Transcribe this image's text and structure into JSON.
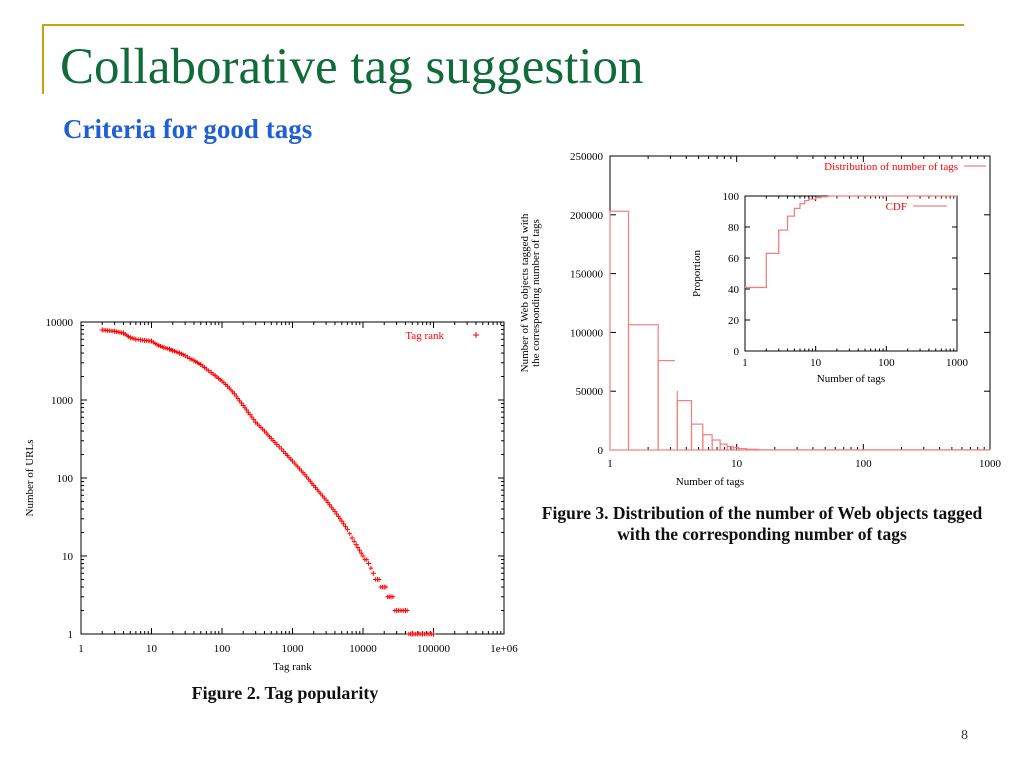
{
  "slide": {
    "title": "Collaborative tag suggestion",
    "subtitle": "Criteria for good tags",
    "page_number": "8",
    "colors": {
      "title": "#0f6b3a",
      "subtitle": "#1f5fd4",
      "frame": "#c8a217",
      "series": "#ff0000",
      "series_light": "#f08080"
    }
  },
  "figures": {
    "fig2_caption": "Figure 2. Tag popularity",
    "fig3_caption_line1": "Figure 3. Distribution of the number of Web objects tagged",
    "fig3_caption_line2": "with the corresponding number of tags"
  },
  "chart_data": [
    {
      "id": "tag-popularity",
      "type": "scatter",
      "title": "",
      "xlabel": "Tag rank",
      "ylabel": "Number of URLs",
      "xscale": "log",
      "yscale": "log",
      "xlim": [
        1,
        1000000
      ],
      "ylim": [
        1,
        10000
      ],
      "x_ticks": [
        "1",
        "10",
        "100",
        "1000",
        "10000",
        "100000",
        "1e+06"
      ],
      "y_ticks": [
        "1",
        "10",
        "100",
        "1000",
        "10000"
      ],
      "legend": "top-right",
      "series": [
        {
          "name": "Tag rank",
          "marker": "+",
          "points": [
            [
              2,
              7900
            ],
            [
              3,
              7600
            ],
            [
              4,
              7200
            ],
            [
              5,
              6300
            ],
            [
              6,
              6000
            ],
            [
              7,
              5900
            ],
            [
              8,
              5800
            ],
            [
              10,
              5700
            ],
            [
              12,
              5100
            ],
            [
              15,
              4700
            ],
            [
              18,
              4500
            ],
            [
              20,
              4300
            ],
            [
              25,
              4000
            ],
            [
              30,
              3700
            ],
            [
              35,
              3400
            ],
            [
              40,
              3200
            ],
            [
              50,
              2850
            ],
            [
              60,
              2500
            ],
            [
              70,
              2250
            ],
            [
              80,
              2050
            ],
            [
              100,
              1750
            ],
            [
              120,
              1500
            ],
            [
              150,
              1200
            ],
            [
              200,
              850
            ],
            [
              250,
              650
            ],
            [
              300,
              520
            ],
            [
              400,
              400
            ],
            [
              500,
              320
            ],
            [
              600,
              270
            ],
            [
              700,
              235
            ],
            [
              800,
              205
            ],
            [
              1000,
              165
            ],
            [
              1500,
              110
            ],
            [
              2000,
              80
            ],
            [
              3000,
              52
            ],
            [
              4000,
              37
            ],
            [
              5000,
              28
            ],
            [
              6000,
              22
            ],
            [
              7000,
              17
            ],
            [
              8000,
              14
            ],
            [
              10000,
              10
            ],
            [
              12000,
              8
            ],
            [
              14000,
              6
            ],
            [
              16000,
              5
            ],
            [
              20000,
              4
            ],
            [
              25000,
              3
            ],
            [
              30000,
              2
            ],
            [
              40000,
              2
            ],
            [
              50000,
              1
            ],
            [
              70000,
              1
            ],
            [
              100000,
              1
            ]
          ]
        }
      ]
    },
    {
      "id": "tags-per-object",
      "type": "bar",
      "title": "",
      "xlabel": "Number of tags",
      "ylabel_lines": [
        "Number of Web objects tagged with",
        "the corresponding number of tags"
      ],
      "xscale": "log",
      "xlim": [
        1,
        1000
      ],
      "ylim": [
        0,
        250000
      ],
      "x_ticks": [
        "1",
        "10",
        "100",
        "1000"
      ],
      "y_ticks": [
        "0",
        "50000",
        "100000",
        "150000",
        "200000",
        "250000"
      ],
      "legend": "top-right",
      "series": [
        {
          "name": "Distribution of number of tags",
          "bins": [
            {
              "x0": 1,
              "x1": 1.4,
              "value": 203000
            },
            {
              "x0": 1.4,
              "x1": 2.4,
              "value": 106500
            },
            {
              "x0": 2.4,
              "x1": 3.4,
              "value": 76000
            },
            {
              "x0": 3.4,
              "x1": 4.4,
              "value": 42000
            },
            {
              "x0": 4.4,
              "x1": 5.4,
              "value": 22000
            },
            {
              "x0": 5.4,
              "x1": 6.4,
              "value": 13000
            },
            {
              "x0": 6.4,
              "x1": 7.4,
              "value": 8500
            },
            {
              "x0": 7.4,
              "x1": 8.4,
              "value": 5000
            },
            {
              "x0": 8.4,
              "x1": 9.4,
              "value": 3000
            },
            {
              "x0": 9.4,
              "x1": 10.4,
              "value": 2000
            },
            {
              "x0": 10.4,
              "x1": 12,
              "value": 1200
            },
            {
              "x0": 12,
              "x1": 15,
              "value": 600
            },
            {
              "x0": 15,
              "x1": 1000,
              "value": 150
            }
          ]
        }
      ],
      "inset": {
        "type": "line",
        "xlabel": "Number of tags",
        "ylabel": "Proportion",
        "xscale": "log",
        "xlim": [
          1,
          1000
        ],
        "ylim": [
          0,
          100
        ],
        "x_ticks": [
          "1",
          "10",
          "100",
          "1000"
        ],
        "y_ticks": [
          "0",
          "20",
          "40",
          "60",
          "80",
          "100"
        ],
        "legend": "top-right",
        "series": [
          {
            "name": "CDF",
            "step": true,
            "points": [
              [
                1,
                41
              ],
              [
                2,
                63
              ],
              [
                3,
                78
              ],
              [
                4,
                87
              ],
              [
                5,
                92
              ],
              [
                6,
                95
              ],
              [
                7,
                97
              ],
              [
                8,
                98
              ],
              [
                10,
                99
              ],
              [
                12,
                99.5
              ],
              [
                15,
                100
              ],
              [
                1000,
                100
              ]
            ]
          }
        ]
      }
    }
  ]
}
